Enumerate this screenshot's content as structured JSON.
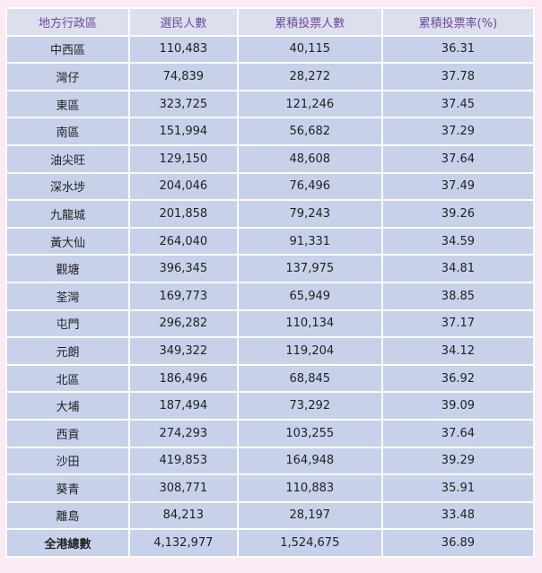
{
  "table": {
    "headers": [
      "地方行政區",
      "選民人數",
      "累積投票人數",
      "累積投票率(%)"
    ],
    "rows": [
      [
        "中西區",
        "110,483",
        "40,115",
        "36.31"
      ],
      [
        "灣仔",
        "74,839",
        "28,272",
        "37.78"
      ],
      [
        "東區",
        "323,725",
        "121,246",
        "37.45"
      ],
      [
        "南區",
        "151,994",
        "56,682",
        "37.29"
      ],
      [
        "油尖旺",
        "129,150",
        "48,608",
        "37.64"
      ],
      [
        "深水埗",
        "204,046",
        "76,496",
        "37.49"
      ],
      [
        "九龍城",
        "201,858",
        "79,243",
        "39.26"
      ],
      [
        "黃大仙",
        "264,040",
        "91,331",
        "34.59"
      ],
      [
        "觀塘",
        "396,345",
        "137,975",
        "34.81"
      ],
      [
        "荃灣",
        "169,773",
        "65,949",
        "38.85"
      ],
      [
        "屯門",
        "296,282",
        "110,134",
        "37.17"
      ],
      [
        "元朗",
        "349,322",
        "119,204",
        "34.12"
      ],
      [
        "北區",
        "186,496",
        "68,845",
        "36.92"
      ],
      [
        "大埔",
        "187,494",
        "73,292",
        "39.09"
      ],
      [
        "西貢",
        "274,293",
        "103,255",
        "37.64"
      ],
      [
        "沙田",
        "419,853",
        "164,948",
        "39.29"
      ],
      [
        "葵青",
        "308,771",
        "110,883",
        "35.91"
      ],
      [
        "離島",
        "84,213",
        "28,197",
        "33.48"
      ]
    ],
    "total": [
      "全港總數",
      "4,132,977",
      "1,524,675",
      "36.89"
    ]
  },
  "colors": {
    "page_background": "#fbe9f4",
    "header_background": "#dcdfee",
    "header_text": "#6b4c98",
    "cell_background": "#c8d1ea",
    "cell_text": "#222222"
  }
}
